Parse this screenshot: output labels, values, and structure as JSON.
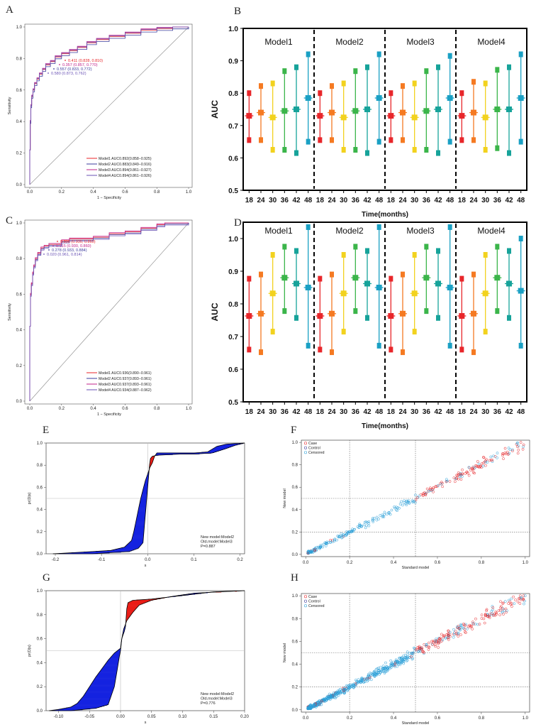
{
  "chart_data": [
    {
      "panel": "A",
      "type": "line",
      "xlabel": "1 − Specificity",
      "ylabel": "Sensitivity",
      "xlim": [
        0,
        1
      ],
      "ylim": [
        0,
        1
      ],
      "ticks": [
        "0.0",
        "0.2",
        "0.4",
        "0.6",
        "0.8",
        "1.0"
      ],
      "legend": [
        {
          "label": "Model1 AUC0.892(0.858−0.925)",
          "color": "#e8262a"
        },
        {
          "label": "Model2 AUC0.883(0.849−0.916)",
          "color": "#3b3b9c"
        },
        {
          "label": "Model3 AUC0.894(0.861−0.927)",
          "color": "#c2228a"
        },
        {
          "label": "Model4 AUC0.894(0.861−0.926)",
          "color": "#6a52b5"
        }
      ],
      "annotations": [
        {
          "text": "0.411 (0.828, 0.810)",
          "color": "#e8262a"
        },
        {
          "text": "0.357 (0.857, 0.770)",
          "color": "#c2228a"
        },
        {
          "text": "0.557 (0.833, 0.772)",
          "color": "#3b3b9c"
        },
        {
          "text": "0.580 (0.873, 0.762)",
          "color": "#6a52b5"
        }
      ],
      "curve": [
        [
          0,
          0
        ],
        [
          0,
          0.22
        ],
        [
          0.003,
          0.4
        ],
        [
          0.007,
          0.5
        ],
        [
          0.012,
          0.56
        ],
        [
          0.02,
          0.6
        ],
        [
          0.03,
          0.64
        ],
        [
          0.045,
          0.67
        ],
        [
          0.06,
          0.7
        ],
        [
          0.08,
          0.73
        ],
        [
          0.1,
          0.76
        ],
        [
          0.13,
          0.78
        ],
        [
          0.16,
          0.81
        ],
        [
          0.2,
          0.83
        ],
        [
          0.25,
          0.85
        ],
        [
          0.3,
          0.87
        ],
        [
          0.36,
          0.9
        ],
        [
          0.42,
          0.92
        ],
        [
          0.5,
          0.94
        ],
        [
          0.6,
          0.96
        ],
        [
          0.7,
          0.98
        ],
        [
          0.8,
          0.99
        ],
        [
          0.9,
          1
        ],
        [
          1,
          1
        ]
      ],
      "offsets": [
        0,
        -0.012,
        0.008,
        0.004
      ]
    },
    {
      "panel": "B",
      "type": "errorbar",
      "ylabel": "AUC",
      "xlabel": "Time(months)",
      "ylim": [
        0.5,
        1.0
      ],
      "yticks": [
        "0.5",
        "0.6",
        "0.7",
        "0.8",
        "0.9",
        "1.0"
      ],
      "models": [
        "Model1",
        "Model2",
        "Model3",
        "Model4"
      ],
      "times": [
        "18",
        "24",
        "30",
        "36",
        "42",
        "48"
      ],
      "colors": [
        "#e8262a",
        "#f57a22",
        "#f2d21e",
        "#3bb54a",
        "#17a39a",
        "#1aa0c4"
      ],
      "series": [
        {
          "name": "Model1",
          "mid": [
            0.73,
            0.74,
            0.725,
            0.745,
            0.75,
            0.785
          ],
          "low": [
            0.655,
            0.655,
            0.625,
            0.625,
            0.615,
            0.65
          ],
          "high": [
            0.8,
            0.822,
            0.83,
            0.868,
            0.88,
            0.92
          ]
        },
        {
          "name": "Model2",
          "mid": [
            0.73,
            0.74,
            0.725,
            0.745,
            0.75,
            0.785
          ],
          "low": [
            0.655,
            0.655,
            0.625,
            0.625,
            0.615,
            0.65
          ],
          "high": [
            0.8,
            0.822,
            0.83,
            0.868,
            0.88,
            0.92
          ]
        },
        {
          "name": "Model3",
          "mid": [
            0.73,
            0.74,
            0.725,
            0.745,
            0.75,
            0.785
          ],
          "low": [
            0.655,
            0.655,
            0.625,
            0.625,
            0.615,
            0.65
          ],
          "high": [
            0.8,
            0.822,
            0.83,
            0.868,
            0.88,
            0.915
          ]
        },
        {
          "name": "Model4",
          "mid": [
            0.73,
            0.74,
            0.725,
            0.75,
            0.75,
            0.785
          ],
          "low": [
            0.655,
            0.655,
            0.625,
            0.63,
            0.615,
            0.65
          ],
          "high": [
            0.8,
            0.835,
            0.83,
            0.872,
            0.88,
            0.92
          ]
        }
      ]
    },
    {
      "panel": "C",
      "type": "line",
      "xlabel": "1 − Specificity",
      "ylabel": "Sensitivity",
      "xlim": [
        0,
        1
      ],
      "ylim": [
        0,
        1
      ],
      "ticks": [
        "0.0",
        "0.2",
        "0.4",
        "0.6",
        "0.8",
        "1.0"
      ],
      "legend": [
        {
          "label": "Model1 AUC0.936(0.890−0.961)",
          "color": "#e8262a"
        },
        {
          "label": "Model2 AUC0.937(0.893−0.961)",
          "color": "#3b3b9c"
        },
        {
          "label": "Model3 AUC0.937(0.893−0.961)",
          "color": "#c2228a"
        },
        {
          "label": "Model4 AUC0.934(0.887−0.962)",
          "color": "#6a52b5"
        }
      ],
      "annotations": [
        {
          "text": "0.300 (0.930, 0.860)",
          "color": "#e8262a"
        },
        {
          "text": "0.315 (0.930, 0.860)",
          "color": "#c2228a"
        },
        {
          "text": "0.278 (0.933, 0.884)",
          "color": "#3b3b9c"
        },
        {
          "text": "0.020 (0.961, 0.814)",
          "color": "#6a52b5"
        }
      ],
      "curve": [
        [
          0,
          0
        ],
        [
          0,
          0.42
        ],
        [
          0.004,
          0.6
        ],
        [
          0.01,
          0.66
        ],
        [
          0.018,
          0.72
        ],
        [
          0.025,
          0.76
        ],
        [
          0.035,
          0.8
        ],
        [
          0.05,
          0.83
        ],
        [
          0.07,
          0.86
        ],
        [
          0.09,
          0.87
        ],
        [
          0.12,
          0.88
        ],
        [
          0.16,
          0.88
        ],
        [
          0.2,
          0.9
        ],
        [
          0.25,
          0.91
        ],
        [
          0.3,
          0.91
        ],
        [
          0.4,
          0.92
        ],
        [
          0.5,
          0.94
        ],
        [
          0.6,
          0.95
        ],
        [
          0.7,
          0.97
        ],
        [
          0.8,
          0.99
        ],
        [
          0.85,
          1
        ],
        [
          1,
          1
        ]
      ],
      "offsets": [
        0,
        -0.006,
        0.005,
        -0.012
      ]
    },
    {
      "panel": "D",
      "type": "errorbar",
      "ylabel": "AUC",
      "xlabel": "Time(months)",
      "ylim": [
        0.5,
        1.05
      ],
      "yticks": [
        "0.5",
        "0.6",
        "0.7",
        "0.8",
        "0.9",
        "1.0"
      ],
      "models": [
        "Model1",
        "Model2",
        "Model3",
        "Model4"
      ],
      "times": [
        "18",
        "24",
        "30",
        "36",
        "42",
        "48"
      ],
      "colors": [
        "#e8262a",
        "#f57a22",
        "#f2d21e",
        "#3bb54a",
        "#17a39a",
        "#1aa0c4"
      ],
      "series": [
        {
          "name": "Model1",
          "mid": [
            0.763,
            0.77,
            0.832,
            0.88,
            0.862,
            0.85
          ],
          "low": [
            0.66,
            0.652,
            0.715,
            0.778,
            0.757,
            0.672
          ],
          "high": [
            0.877,
            0.89,
            0.95,
            0.975,
            0.962,
            1.035
          ]
        },
        {
          "name": "Model2",
          "mid": [
            0.763,
            0.77,
            0.832,
            0.88,
            0.862,
            0.85
          ],
          "low": [
            0.66,
            0.652,
            0.715,
            0.778,
            0.757,
            0.672
          ],
          "high": [
            0.877,
            0.89,
            0.95,
            0.975,
            0.962,
            1.035
          ]
        },
        {
          "name": "Model3",
          "mid": [
            0.763,
            0.77,
            0.832,
            0.88,
            0.862,
            0.85
          ],
          "low": [
            0.66,
            0.652,
            0.715,
            0.778,
            0.757,
            0.672
          ],
          "high": [
            0.877,
            0.89,
            0.95,
            0.975,
            0.962,
            1.035
          ]
        },
        {
          "name": "Model4",
          "mid": [
            0.763,
            0.77,
            0.832,
            0.88,
            0.862,
            0.84
          ],
          "low": [
            0.66,
            0.652,
            0.715,
            0.778,
            0.757,
            0.672
          ],
          "high": [
            0.877,
            0.89,
            0.95,
            0.975,
            0.962,
            1.0
          ]
        }
      ]
    },
    {
      "panel": "E",
      "type": "area",
      "xlabel": "s",
      "ylabel": "pr(D|s)",
      "xlim": [
        -0.22,
        0.21
      ],
      "ylim": [
        0,
        1
      ],
      "xticks": [
        -0.2,
        -0.1,
        0.0,
        0.1,
        0.2
      ],
      "xtick_labels": [
        "-0.2",
        "-0.1",
        "0.0",
        "0.1",
        "0.2"
      ],
      "yticks": [
        "0.0",
        "0.2",
        "0.4",
        "0.6",
        "0.8",
        "1.0"
      ],
      "note": [
        "New model:Model2",
        "Old.model:Model3",
        "P=0.887"
      ],
      "new_curve": [
        [
          -0.205,
          0
        ],
        [
          -0.12,
          0.02
        ],
        [
          -0.08,
          0.03
        ],
        [
          -0.05,
          0.06
        ],
        [
          -0.035,
          0.12
        ],
        [
          -0.03,
          0.2
        ],
        [
          -0.025,
          0.3
        ],
        [
          -0.02,
          0.4
        ],
        [
          -0.015,
          0.5
        ],
        [
          -0.01,
          0.58
        ],
        [
          -0.005,
          0.66
        ],
        [
          0,
          0.72
        ],
        [
          0.005,
          0.78
        ],
        [
          0.01,
          0.82
        ],
        [
          0.015,
          0.88
        ],
        [
          0.02,
          0.91
        ],
        [
          0.05,
          0.91
        ],
        [
          0.1,
          0.91
        ],
        [
          0.13,
          0.92
        ],
        [
          0.15,
          0.97
        ],
        [
          0.17,
          0.99
        ],
        [
          0.21,
          1
        ]
      ],
      "old_curve": [
        [
          -0.205,
          0
        ],
        [
          -0.12,
          0
        ],
        [
          -0.08,
          0.01
        ],
        [
          -0.04,
          0.02
        ],
        [
          -0.02,
          0.05
        ],
        [
          -0.01,
          0.1
        ],
        [
          -0.008,
          0.2
        ],
        [
          -0.006,
          0.3
        ],
        [
          -0.004,
          0.4
        ],
        [
          -0.002,
          0.5
        ],
        [
          0,
          0.6
        ],
        [
          0.002,
          0.7
        ],
        [
          0.004,
          0.8
        ],
        [
          0.006,
          0.86
        ],
        [
          0.01,
          0.88
        ],
        [
          0.02,
          0.89
        ],
        [
          0.07,
          0.9
        ],
        [
          0.1,
          0.9
        ],
        [
          0.14,
          0.91
        ],
        [
          0.17,
          0.95
        ],
        [
          0.19,
          0.98
        ],
        [
          0.21,
          1
        ]
      ],
      "pos_color": "#ea1d17",
      "neg_color": "#1522e0"
    },
    {
      "panel": "F",
      "type": "scatter",
      "xlabel": "Standard model",
      "ylabel": "New model",
      "xlim": [
        -0.02,
        1.02
      ],
      "ylim": [
        -0.02,
        1.02
      ],
      "ticks": [
        0,
        0.2,
        0.4,
        0.6,
        0.8,
        1.0
      ],
      "tick_labels": [
        "0.0",
        "0.2",
        "0.4",
        "0.6",
        "0.8",
        "1.0"
      ],
      "vlines": [
        0.2,
        0.5
      ],
      "hlines": [
        0.2,
        0.5
      ],
      "legend": [
        {
          "label": "Case",
          "color": "#e8262a"
        },
        {
          "label": "Control",
          "color": "#3b3b9c"
        },
        {
          "label": "Censored",
          "color": "#2a9fd8"
        }
      ],
      "n_points": 320,
      "spread": 0.035
    },
    {
      "panel": "G",
      "type": "area",
      "xlabel": "s",
      "ylabel": "pr(D|s)",
      "xlim": [
        -0.12,
        0.2
      ],
      "ylim": [
        0,
        1
      ],
      "xticks": [
        -0.1,
        -0.05,
        0.0,
        0.05,
        0.1,
        0.15,
        0.2
      ],
      "xtick_labels": [
        "-0.10",
        "-0.05",
        "0.00",
        "0.05",
        "0.10",
        "0.15",
        "0.20"
      ],
      "yticks": [
        "0.0",
        "0.2",
        "0.4",
        "0.6",
        "0.8",
        "1.0"
      ],
      "note": [
        "New model:Model2",
        "Old.model:Model3",
        "P=0.776"
      ],
      "new_curve": [
        [
          -0.115,
          0
        ],
        [
          -0.1,
          0.01
        ],
        [
          -0.08,
          0.03
        ],
        [
          -0.07,
          0.06
        ],
        [
          -0.06,
          0.12
        ],
        [
          -0.05,
          0.2
        ],
        [
          -0.04,
          0.28
        ],
        [
          -0.03,
          0.35
        ],
        [
          -0.02,
          0.42
        ],
        [
          -0.01,
          0.48
        ],
        [
          0,
          0.52
        ],
        [
          0.002,
          0.6
        ],
        [
          0.005,
          0.68
        ],
        [
          0.01,
          0.75
        ],
        [
          0.02,
          0.82
        ],
        [
          0.03,
          0.88
        ],
        [
          0.05,
          0.92
        ],
        [
          0.08,
          0.95
        ],
        [
          0.12,
          0.98
        ],
        [
          0.2,
          1
        ]
      ],
      "old_curve": [
        [
          -0.115,
          0
        ],
        [
          -0.08,
          0
        ],
        [
          -0.06,
          0.01
        ],
        [
          -0.04,
          0.02
        ],
        [
          -0.02,
          0.05
        ],
        [
          -0.01,
          0.2
        ],
        [
          -0.005,
          0.35
        ],
        [
          -0.002,
          0.45
        ],
        [
          0,
          0.5
        ],
        [
          0.001,
          0.55
        ],
        [
          0.002,
          0.6
        ],
        [
          0.004,
          0.63
        ],
        [
          0.006,
          0.66
        ],
        [
          0.008,
          0.7
        ],
        [
          0.01,
          0.85
        ],
        [
          0.012,
          0.9
        ],
        [
          0.02,
          0.92
        ],
        [
          0.05,
          0.93
        ],
        [
          0.1,
          0.96
        ],
        [
          0.15,
          0.99
        ],
        [
          0.2,
          1
        ]
      ],
      "pos_color": "#ea1d17",
      "neg_color": "#1522e0"
    },
    {
      "panel": "H",
      "type": "scatter",
      "xlabel": "Standard model",
      "ylabel": "New model",
      "xlim": [
        -0.02,
        1.02
      ],
      "ylim": [
        -0.02,
        1.02
      ],
      "ticks": [
        0,
        0.2,
        0.4,
        0.6,
        0.8,
        1.0
      ],
      "tick_labels": [
        "0.0",
        "0.2",
        "0.4",
        "0.6",
        "0.8",
        "1.0"
      ],
      "vlines": [
        0.2,
        0.5
      ],
      "hlines": [
        0.2,
        0.5
      ],
      "legend": [
        {
          "label": "Case",
          "color": "#e8262a"
        },
        {
          "label": "Control",
          "color": "#3b3b9c"
        },
        {
          "label": "Censored",
          "color": "#2a9fd8"
        }
      ],
      "n_points": 700,
      "spread": 0.045
    }
  ]
}
